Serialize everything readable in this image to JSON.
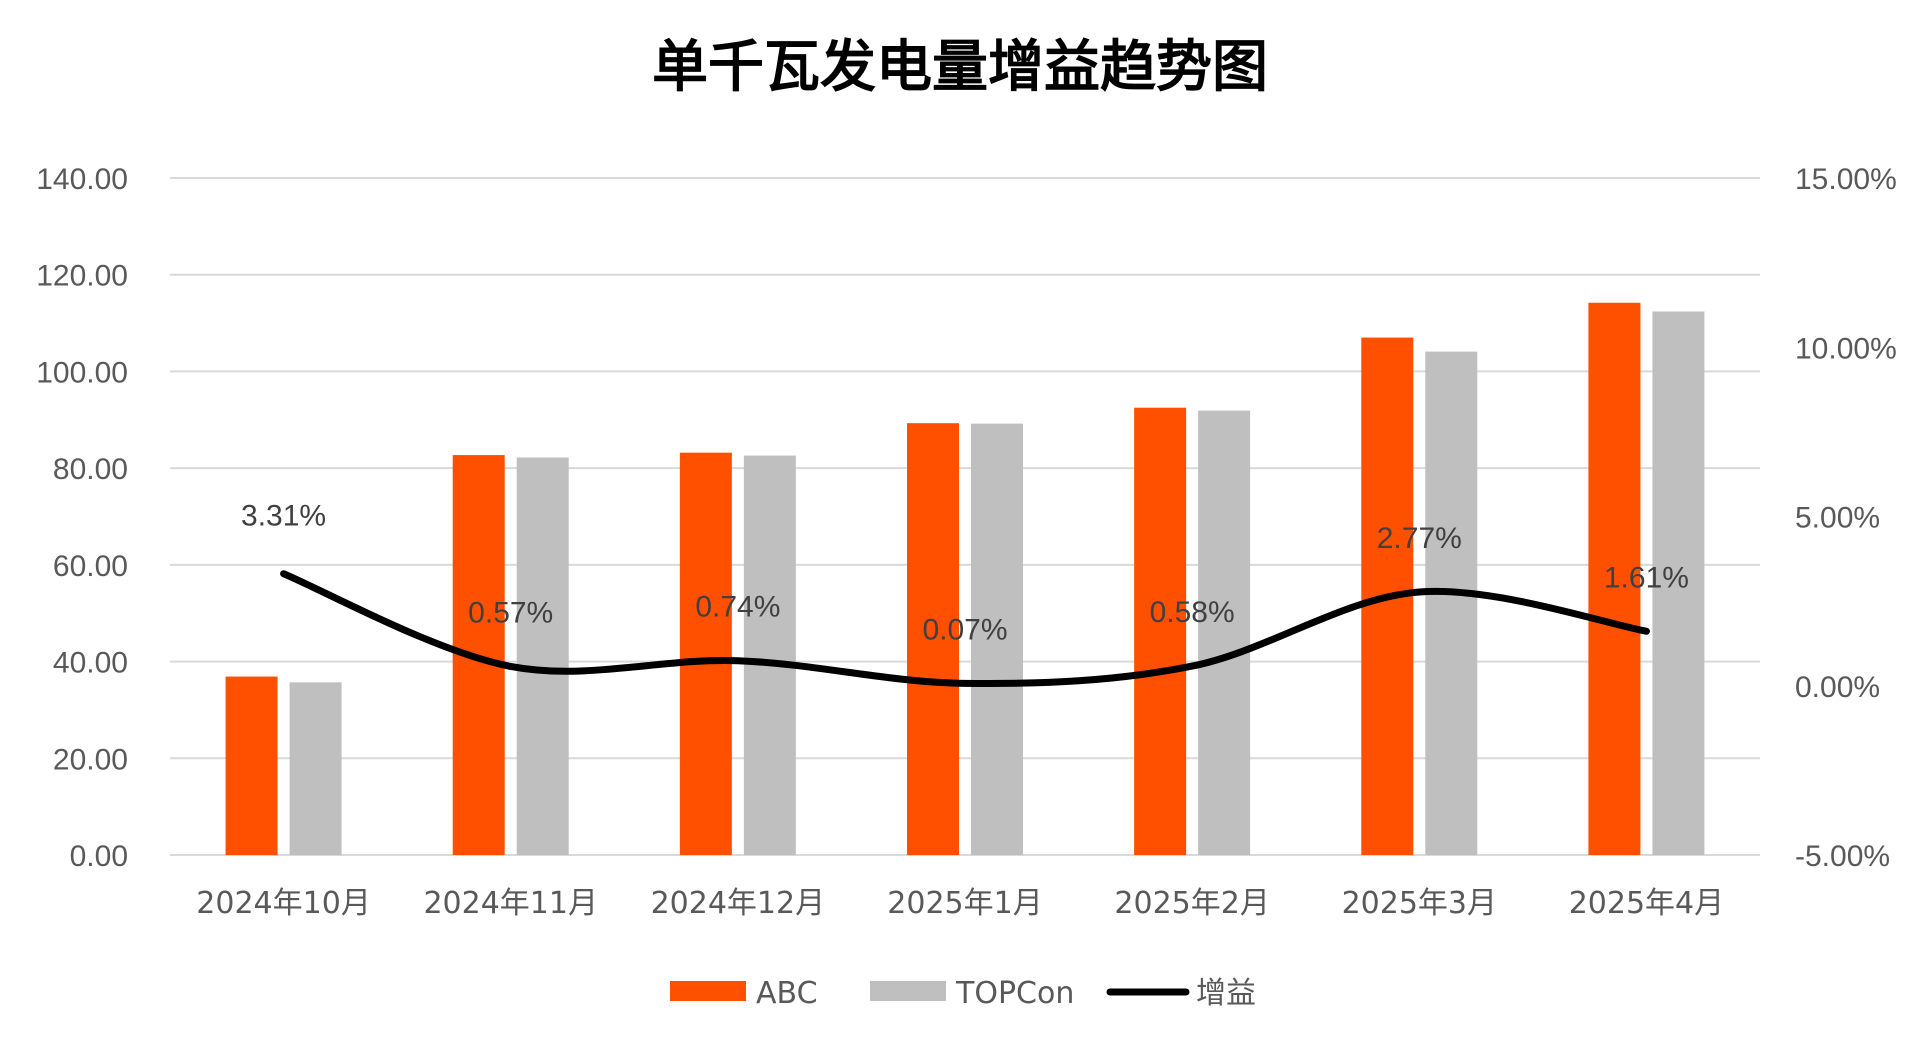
{
  "chart_data": {
    "type": "bar",
    "title": "单千瓦发电量增益趋势图",
    "categories": [
      "2024年10月",
      "2024年11月",
      "2024年12月",
      "2025年1月",
      "2025年2月",
      "2025年3月",
      "2025年4月"
    ],
    "series": [
      {
        "name": "ABC",
        "type": "bar",
        "axis": "left",
        "color": "#FF5000",
        "values": [
          36.9,
          82.7,
          83.2,
          89.3,
          92.5,
          107.0,
          114.2
        ]
      },
      {
        "name": "TOPCon",
        "type": "bar",
        "axis": "left",
        "color": "#BFBFBF",
        "values": [
          35.7,
          82.2,
          82.6,
          89.2,
          91.9,
          104.1,
          112.4
        ]
      },
      {
        "name": "增益",
        "type": "line",
        "axis": "right",
        "color": "#000000",
        "smooth": true,
        "values": [
          3.31,
          0.57,
          0.74,
          0.07,
          0.58,
          2.77,
          1.61
        ],
        "data_labels": [
          "3.31%",
          "0.57%",
          "0.74%",
          "0.07%",
          "0.58%",
          "2.77%",
          "1.61%"
        ]
      }
    ],
    "y_left": {
      "min": 0,
      "max": 140,
      "step": 20,
      "tick_labels": [
        "0.00",
        "20.00",
        "40.00",
        "60.00",
        "80.00",
        "100.00",
        "120.00",
        "140.00"
      ]
    },
    "y_right": {
      "min": -5,
      "max": 15,
      "step": 5,
      "tick_labels": [
        "-5.00%",
        "0.00%",
        "5.00%",
        "10.00%",
        "15.00%"
      ]
    },
    "grid": true,
    "legend_position": "bottom"
  }
}
